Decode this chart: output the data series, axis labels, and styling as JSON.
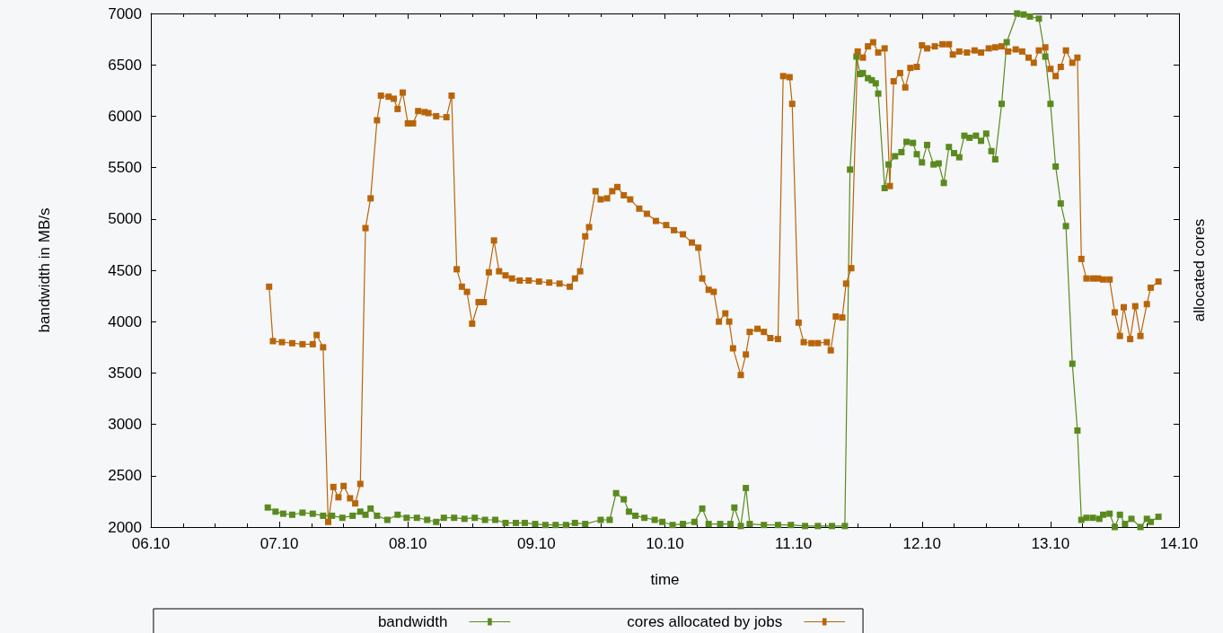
{
  "chart_data": {
    "type": "line",
    "xlabel": "time",
    "ylabel": "bandwidth in MB/s",
    "y2label": "allocated cores",
    "xlim": [
      "--10-06",
      "--10-14"
    ],
    "xticks": [
      {
        "value": "--10-06",
        "label": "06.10"
      },
      {
        "value": "--10-07",
        "label": "07.10"
      },
      {
        "value": "--10-08",
        "label": "08.10"
      },
      {
        "value": "--10-09",
        "label": "09.10"
      },
      {
        "value": "--10-10",
        "label": "10.10"
      },
      {
        "value": "--10-11",
        "label": "11.10"
      },
      {
        "value": "--10-12",
        "label": "12.10"
      },
      {
        "value": "--10-13",
        "label": "13.10"
      },
      {
        "value": "--10-14",
        "label": "14.10"
      }
    ],
    "ylim": [
      2000,
      7000
    ],
    "yticks": [
      2000,
      2500,
      3000,
      3500,
      4000,
      4500,
      5000,
      5500,
      6000,
      6500,
      7000
    ],
    "grid": false,
    "legend": "bottom",
    "marker": "square",
    "line_style": "solid",
    "series": [
      {
        "name": "bandwidth",
        "color": "#5a8a1e",
        "x": [
          "--10-06T21:50",
          "--10-06T23:17",
          "--10-07T00:43",
          "--10-07T02:24",
          "--10-07T04:19",
          "--10-07T06:14",
          "--10-07T08:10",
          "--10-07T09:50",
          "--10-07T11:46",
          "--10-07T13:41",
          "--10-07T15:07",
          "--10-07T16:05",
          "--10-07T17:02",
          "--10-07T18:14",
          "--10-07T20:10",
          "--10-07T22:05",
          "--10-07T23:46",
          "--10-08T01:41",
          "--10-08T03:36",
          "--10-08T05:17",
          "--10-08T06:43",
          "--10-08T08:38",
          "--10-08T10:34",
          "--10-08T12:29",
          "--10-08T14:24",
          "--10-08T16:19",
          "--10-08T18:14",
          "--10-08T20:10",
          "--10-08T21:50",
          "--10-08T23:46",
          "--10-09T01:41",
          "--10-09T03:36",
          "--10-09T05:31",
          "--10-09T07:12",
          "--10-09T09:07",
          "--10-09T12:00",
          "--10-09T13:41",
          "--10-09T14:53",
          "--10-09T16:19",
          "--10-09T17:17",
          "--10-09T18:29",
          "--10-09T20:10",
          "--10-09T22:05",
          "--10-09T23:31",
          "--10-10T01:26",
          "--10-10T03:22",
          "--10-10T05:31",
          "--10-10T06:58",
          "--10-10T08:10",
          "--10-10T10:19",
          "--10-10T12:14",
          "--10-10T12:58",
          "--10-10T14:10",
          "--10-10T15:07",
          "--10-10T15:50",
          "--10-10T18:29",
          "--10-10T21:07",
          "--10-10T23:31",
          "--10-11T02:10",
          "--10-11T04:34",
          "--10-11T07:12",
          "--10-11T09:36",
          "--10-11T10:34",
          "--10-11T11:46",
          "--10-11T12:29",
          "--10-11T12:58",
          "--10-11T13:55",
          "--10-11T14:38",
          "--10-11T15:22",
          "--10-11T15:50",
          "--10-11T17:02",
          "--10-11T17:46",
          "--10-11T18:58",
          "--10-11T20:10",
          "--10-11T21:07",
          "--10-11T22:19",
          "--10-11T23:02",
          "--10-12T00:00",
          "--10-12T00:58",
          "--10-12T02:10",
          "--10-12T03:07",
          "--10-12T04:05",
          "--10-12T05:02",
          "--10-12T06:00",
          "--10-12T06:58",
          "--10-12T07:55",
          "--10-12T08:53",
          "--10-12T10:05",
          "--10-12T11:02",
          "--10-12T12:00",
          "--10-12T12:58",
          "--10-12T13:41",
          "--10-12T14:53",
          "--10-12T15:50",
          "--10-12T17:46",
          "--10-12T18:58",
          "--10-12T20:10",
          "--10-12T21:50",
          "--10-12T23:02",
          "--10-13T00:00",
          "--10-13T00:58",
          "--10-13T01:55",
          "--10-13T02:53",
          "--10-13T04:05",
          "--10-13T05:02",
          "--10-13T05:46",
          "--10-13T06:43",
          "--10-13T07:55",
          "--10-13T09:07",
          "--10-13T09:50",
          "--10-13T11:02",
          "--10-13T12:00",
          "--10-13T12:58",
          "--10-13T13:55",
          "--10-13T15:07",
          "--10-13T16:48",
          "--10-13T18:00",
          "--10-13T18:43",
          "--10-13T20:10"
        ],
        "values": [
          2190,
          2150,
          2130,
          2120,
          2140,
          2130,
          2110,
          2110,
          2090,
          2110,
          2150,
          2120,
          2180,
          2110,
          2070,
          2120,
          2090,
          2090,
          2070,
          2050,
          2090,
          2090,
          2080,
          2090,
          2070,
          2070,
          2040,
          2040,
          2040,
          2030,
          2020,
          2020,
          2020,
          2040,
          2030,
          2070,
          2070,
          2330,
          2270,
          2150,
          2110,
          2090,
          2070,
          2050,
          2020,
          2030,
          2050,
          2180,
          2030,
          2030,
          2030,
          2190,
          2010,
          2380,
          2030,
          2020,
          2020,
          2020,
          2010,
          2010,
          2010,
          2010,
          5480,
          6580,
          6410,
          6420,
          6370,
          6350,
          6320,
          6220,
          5300,
          5530,
          5610,
          5650,
          5750,
          5740,
          5630,
          5550,
          5720,
          5530,
          5540,
          5350,
          5700,
          5640,
          5600,
          5810,
          5790,
          5810,
          5760,
          5830,
          5660,
          5580,
          6120,
          6720,
          7000,
          6990,
          6970,
          6950,
          6580,
          6120,
          5510,
          5150,
          4930,
          3590,
          2940,
          2070,
          2090,
          2090,
          2080,
          2120,
          2130,
          2000,
          2120,
          2030,
          2080,
          2000,
          2080,
          2050,
          2100
        ]
      },
      {
        "name": "cores allocated by jobs",
        "color": "#b8650a",
        "x": [
          "--10-06T22:05",
          "--10-06T22:48",
          "--10-07T00:29",
          "--10-07T02:24",
          "--10-07T04:19",
          "--10-07T06:14",
          "--10-07T06:58",
          "--10-07T08:10",
          "--10-07T09:07",
          "--10-07T10:05",
          "--10-07T11:02",
          "--10-07T12:00",
          "--10-07T13:12",
          "--10-07T14:10",
          "--10-07T15:07",
          "--10-07T16:05",
          "--10-07T17:02",
          "--10-07T18:14",
          "--10-07T18:58",
          "--10-07T20:24",
          "--10-07T21:22",
          "--10-07T22:05",
          "--10-07T23:02",
          "--10-08T00:00",
          "--10-08T00:58",
          "--10-08T01:55",
          "--10-08T03:07",
          "--10-08T03:50",
          "--10-08T05:17",
          "--10-08T07:12",
          "--10-08T08:10",
          "--10-08T09:07",
          "--10-08T10:05",
          "--10-08T11:02",
          "--10-08T12:00",
          "--10-08T13:12",
          "--10-08T14:10",
          "--10-08T15:07",
          "--10-08T16:05",
          "--10-08T17:02",
          "--10-08T18:14",
          "--10-08T19:26",
          "--10-08T20:53",
          "--10-08T22:34",
          "--10-09T00:29",
          "--10-09T02:24",
          "--10-09T04:19",
          "--10-09T06:14",
          "--10-09T07:12",
          "--10-09T08:10",
          "--10-09T09:07",
          "--10-09T09:50",
          "--10-09T11:02",
          "--10-09T12:00",
          "--10-09T13:12",
          "--10-09T14:10",
          "--10-09T15:07",
          "--10-09T16:19",
          "--10-09T17:31",
          "--10-09T19:12",
          "--10-09T20:38",
          "--10-09T22:19",
          "--10-10T00:14",
          "--10-10T01:41",
          "--10-10T03:22",
          "--10-10T05:02",
          "--10-10T06:14",
          "--10-10T06:58",
          "--10-10T08:10",
          "--10-10T09:07",
          "--10-10T10:05",
          "--10-10T11:17",
          "--10-10T12:00",
          "--10-10T12:43",
          "--10-10T14:10",
          "--10-10T15:07",
          "--10-10T15:50",
          "--10-10T17:17",
          "--10-10T18:29",
          "--10-10T19:41",
          "--10-10T21:07",
          "--10-10T22:05",
          "--10-10T23:17",
          "--10-10T23:46",
          "--10-11T00:58",
          "--10-11T01:55",
          "--10-11T03:22",
          "--10-11T04:34",
          "--10-11T06:14",
          "--10-11T06:58",
          "--10-11T07:55",
          "--10-11T09:07",
          "--10-11T09:50",
          "--10-11T10:48",
          "--10-11T12:00",
          "--10-11T12:58",
          "--10-11T13:55",
          "--10-11T14:53",
          "--10-11T15:50",
          "--10-11T17:02",
          "--10-11T18:00",
          "--10-11T18:43",
          "--10-11T19:55",
          "--10-11T20:53",
          "--10-11T21:50",
          "--10-11T23:02",
          "--10-12T00:00",
          "--10-12T00:58",
          "--10-12T02:24",
          "--10-12T03:50",
          "--10-12T05:02",
          "--10-12T05:46",
          "--10-12T06:58",
          "--10-12T08:24",
          "--10-12T09:50",
          "--10-12T11:02",
          "--10-12T12:29",
          "--10-12T13:41",
          "--10-12T14:53",
          "--10-12T16:05",
          "--10-12T17:31",
          "--10-12T18:43",
          "--10-12T19:55",
          "--10-12T20:53",
          "--10-12T21:50",
          "--10-12T23:02",
          "--10-13T00:00",
          "--10-13T00:58",
          "--10-13T01:55",
          "--10-13T02:53",
          "--10-13T04:05",
          "--10-13T05:02",
          "--10-13T05:46",
          "--10-13T06:43",
          "--10-13T07:55",
          "--10-13T08:53",
          "--10-13T09:50",
          "--10-13T11:02",
          "--10-13T12:00",
          "--10-13T12:58",
          "--10-13T13:41",
          "--10-13T14:53",
          "--10-13T15:50",
          "--10-13T16:48",
          "--10-13T18:00",
          "--10-13T18:43",
          "--10-13T20:10"
        ],
        "values": [
          4340,
          3810,
          3800,
          3790,
          3780,
          3780,
          3870,
          3750,
          2050,
          2390,
          2290,
          2400,
          2280,
          2230,
          2420,
          4910,
          5200,
          5960,
          6200,
          6190,
          6170,
          6070,
          6230,
          5930,
          5930,
          6050,
          6040,
          6030,
          6000,
          5990,
          6200,
          4510,
          4340,
          4290,
          3980,
          4190,
          4190,
          4480,
          4790,
          4490,
          4450,
          4420,
          4400,
          4400,
          4390,
          4380,
          4370,
          4340,
          4420,
          4490,
          4830,
          4920,
          5270,
          5190,
          5200,
          5270,
          5310,
          5230,
          5190,
          5100,
          5050,
          4980,
          4940,
          4890,
          4850,
          4770,
          4720,
          4420,
          4310,
          4290,
          4000,
          4080,
          4000,
          3740,
          3480,
          3680,
          3900,
          3930,
          3900,
          3840,
          3830,
          6390,
          6380,
          6120,
          3990,
          3800,
          3790,
          3790,
          3800,
          3720,
          4050,
          4040,
          4370,
          4520,
          6630,
          6570,
          6680,
          6720,
          6620,
          6660,
          5320,
          6340,
          6420,
          6280,
          6470,
          6480,
          6690,
          6660,
          6680,
          6700,
          6700,
          6600,
          6630,
          6620,
          6640,
          6620,
          6660,
          6670,
          6680,
          6630,
          6650,
          6630,
          6570,
          6520,
          6640,
          6670,
          6460,
          6390,
          6480,
          6640,
          6520,
          6570,
          4610,
          4420,
          4420,
          4420,
          4410,
          4410,
          4090,
          3860,
          4140,
          3830,
          4150,
          3860,
          4170,
          4330,
          4390
        ]
      }
    ]
  }
}
